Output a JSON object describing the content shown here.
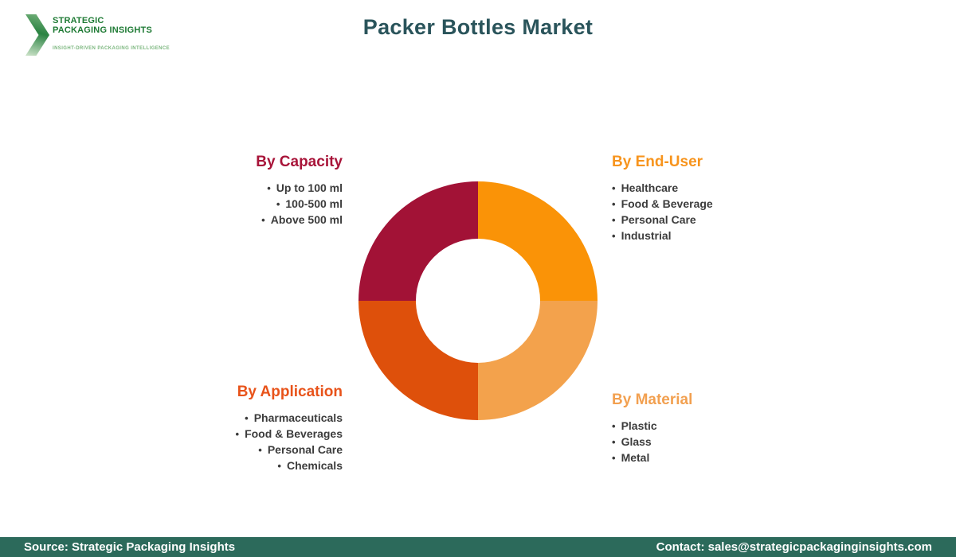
{
  "logo": {
    "line1": "STRATEGIC",
    "line2": "PACKAGING INSIGHTS",
    "tagline": "INSIGHT-DRIVEN PACKAGING INTELLIGENCE"
  },
  "title": "Packer Bottles Market",
  "title_color": "#2A545B",
  "sections": {
    "capacity": {
      "heading": "By Capacity",
      "color": "#A81439",
      "items": [
        "Up to 100 ml",
        "100-500 ml",
        "Above 500 ml"
      ]
    },
    "end_user": {
      "heading": "By End-User",
      "color": "#F7941D",
      "items": [
        "Healthcare",
        "Food & Beverage",
        "Personal Care",
        "Industrial"
      ]
    },
    "application": {
      "heading": "By Application",
      "color": "#E8531A",
      "items": [
        "Pharmaceuticals",
        "Food & Beverages",
        "Personal Care",
        "Chemicals"
      ]
    },
    "material": {
      "heading": "By Material",
      "color": "#F2A050",
      "items": [
        "Plastic",
        "Glass",
        "Metal"
      ]
    }
  },
  "chart_data": {
    "type": "pie",
    "subtype": "donut",
    "title": "Packer Bottles Market",
    "inner_radius_ratio": 0.52,
    "legend_position": "corner-labels",
    "segments": [
      {
        "label": "By End-User",
        "value": 25,
        "color": "#FA9307",
        "start_angle": 0,
        "end_angle": 90
      },
      {
        "label": "By Material",
        "value": 25,
        "color": "#F3A24C",
        "start_angle": 90,
        "end_angle": 180
      },
      {
        "label": "By Application",
        "value": 25,
        "color": "#DE500B",
        "start_angle": 180,
        "end_angle": 270
      },
      {
        "label": "By Capacity",
        "value": 25,
        "color": "#A21236",
        "start_angle": 270,
        "end_angle": 360
      }
    ]
  },
  "footer": {
    "background": "#2C6A5B",
    "source": "Source: Strategic Packaging Insights",
    "contact": "Contact: sales@strategicpackaginginsights.com"
  }
}
